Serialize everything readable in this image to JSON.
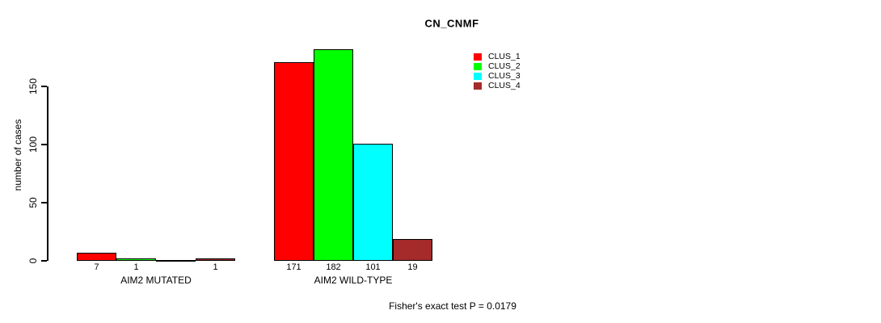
{
  "chart_data": {
    "type": "bar",
    "title": "CN_CNMF",
    "ylabel": "number of cases",
    "xlabel": "",
    "categories": [
      "AIM2 MUTATED",
      "AIM2 WILD-TYPE"
    ],
    "series": [
      {
        "name": "CLUS_1",
        "color": "#ff0000",
        "values": [
          7,
          171
        ]
      },
      {
        "name": "CLUS_2",
        "color": "#00ff00",
        "values": [
          1,
          182
        ]
      },
      {
        "name": "CLUS_3",
        "color": "#00ffff",
        "values": [
          0,
          101
        ]
      },
      {
        "name": "CLUS_4",
        "color": "#a52a2a",
        "values": [
          1,
          19
        ]
      }
    ],
    "bar_value_labels": [
      [
        "7",
        "1",
        "",
        "1"
      ],
      [
        "171",
        "182",
        "101",
        "19"
      ]
    ],
    "yticks": [
      "0",
      "50",
      "100",
      "150"
    ],
    "ylim": [
      0,
      190
    ],
    "grid": false,
    "legend_position": "top-right",
    "annotation": "Fisher's exact test P = 0.0179"
  }
}
